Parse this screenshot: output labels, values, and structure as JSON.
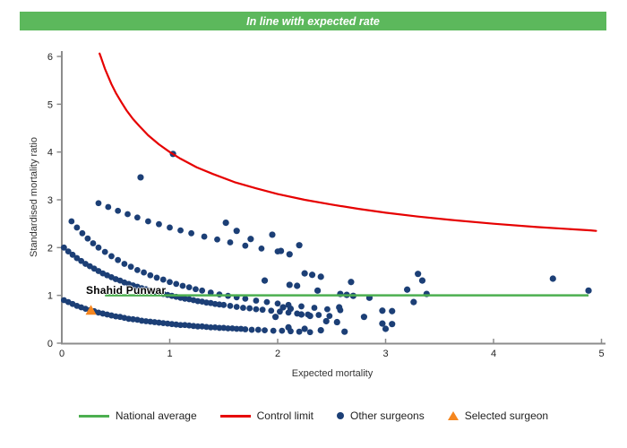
{
  "banner": {
    "title": "In line with expected rate",
    "bg_color": "#5cb85c",
    "text_color": "#ffffff"
  },
  "chart_data": {
    "type": "scatter",
    "xlabel": "Expected mortality",
    "ylabel": "Standardised mortality ratio",
    "xlim": [
      0,
      5
    ],
    "ylim": [
      0,
      6
    ],
    "x_ticks": [
      0,
      1,
      2,
      3,
      4,
      5
    ],
    "y_ticks": [
      0,
      1,
      2,
      3,
      4,
      5,
      6
    ],
    "grid": false,
    "axis_color": "#8c8c8c",
    "national_average": {
      "label": "National average",
      "value": 1,
      "x_start": 0.4,
      "x_end": 4.88,
      "color": "#4caf50"
    },
    "control_limit": {
      "label": "Control limit",
      "color": "#e60000",
      "formula": "y = 1 + 3/sqrt(x)",
      "points": [
        [
          0.35,
          6.06
        ],
        [
          0.36,
          6.0
        ],
        [
          0.38,
          5.87
        ],
        [
          0.4,
          5.74
        ],
        [
          0.43,
          5.58
        ],
        [
          0.46,
          5.42
        ],
        [
          0.5,
          5.24
        ],
        [
          0.55,
          5.05
        ],
        [
          0.6,
          4.87
        ],
        [
          0.66,
          4.69
        ],
        [
          0.72,
          4.54
        ],
        [
          0.8,
          4.35
        ],
        [
          0.9,
          4.16
        ],
        [
          1.0,
          4.0
        ],
        [
          1.1,
          3.86
        ],
        [
          1.25,
          3.68
        ],
        [
          1.4,
          3.54
        ],
        [
          1.6,
          3.37
        ],
        [
          1.8,
          3.24
        ],
        [
          2.0,
          3.12
        ],
        [
          2.25,
          3.0
        ],
        [
          2.5,
          2.9
        ],
        [
          2.75,
          2.81
        ],
        [
          3.0,
          2.73
        ],
        [
          3.3,
          2.65
        ],
        [
          3.6,
          2.58
        ],
        [
          4.0,
          2.5
        ],
        [
          4.4,
          2.43
        ],
        [
          4.9,
          2.36
        ],
        [
          4.95,
          2.35
        ]
      ]
    },
    "selected_surgeon": {
      "label": "Selected surgeon",
      "name": "Shahid Punwar",
      "x": 0.27,
      "y": 0.69,
      "color": "#f5861f"
    },
    "other_surgeons": {
      "label": "Other surgeons",
      "color": "#1c3f76",
      "bands": [
        [
          [
            0.02,
            0.9
          ],
          [
            0.06,
            0.86
          ],
          [
            0.1,
            0.82
          ],
          [
            0.14,
            0.78
          ],
          [
            0.18,
            0.75
          ],
          [
            0.22,
            0.72
          ],
          [
            0.26,
            0.69
          ],
          [
            0.3,
            0.67
          ],
          [
            0.34,
            0.64
          ],
          [
            0.38,
            0.62
          ],
          [
            0.42,
            0.6
          ],
          [
            0.46,
            0.58
          ],
          [
            0.5,
            0.56
          ],
          [
            0.54,
            0.55
          ],
          [
            0.58,
            0.53
          ],
          [
            0.62,
            0.51
          ],
          [
            0.66,
            0.5
          ],
          [
            0.7,
            0.49
          ],
          [
            0.74,
            0.47
          ],
          [
            0.78,
            0.46
          ],
          [
            0.82,
            0.45
          ],
          [
            0.86,
            0.44
          ],
          [
            0.9,
            0.43
          ],
          [
            0.94,
            0.42
          ],
          [
            0.98,
            0.41
          ],
          [
            1.02,
            0.4
          ],
          [
            1.06,
            0.39
          ],
          [
            1.1,
            0.38
          ],
          [
            1.14,
            0.38
          ],
          [
            1.18,
            0.37
          ],
          [
            1.22,
            0.36
          ],
          [
            1.26,
            0.35
          ],
          [
            1.3,
            0.35
          ],
          [
            1.34,
            0.34
          ],
          [
            1.38,
            0.33
          ],
          [
            1.42,
            0.33
          ],
          [
            1.46,
            0.32
          ],
          [
            1.5,
            0.32
          ],
          [
            1.54,
            0.31
          ],
          [
            1.58,
            0.31
          ],
          [
            1.62,
            0.3
          ],
          [
            1.66,
            0.3
          ],
          [
            1.7,
            0.29
          ],
          [
            1.76,
            0.28
          ],
          [
            1.82,
            0.28
          ],
          [
            1.88,
            0.27
          ],
          [
            1.96,
            0.26
          ],
          [
            2.04,
            0.26
          ],
          [
            2.12,
            0.25
          ],
          [
            2.2,
            0.24
          ],
          [
            2.3,
            0.23
          ]
        ],
        [
          [
            0.02,
            2.0
          ],
          [
            0.06,
            1.92
          ],
          [
            0.1,
            1.85
          ],
          [
            0.14,
            1.78
          ],
          [
            0.18,
            1.72
          ],
          [
            0.22,
            1.66
          ],
          [
            0.26,
            1.61
          ],
          [
            0.3,
            1.56
          ],
          [
            0.34,
            1.51
          ],
          [
            0.38,
            1.46
          ],
          [
            0.42,
            1.42
          ],
          [
            0.46,
            1.38
          ],
          [
            0.5,
            1.34
          ],
          [
            0.54,
            1.31
          ],
          [
            0.58,
            1.27
          ],
          [
            0.62,
            1.24
          ],
          [
            0.66,
            1.21
          ],
          [
            0.7,
            1.18
          ],
          [
            0.74,
            1.15
          ],
          [
            0.78,
            1.13
          ],
          [
            0.82,
            1.1
          ],
          [
            0.86,
            1.08
          ],
          [
            0.9,
            1.05
          ],
          [
            0.94,
            1.03
          ],
          [
            0.98,
            1.01
          ],
          [
            1.02,
            0.99
          ],
          [
            1.06,
            0.97
          ],
          [
            1.1,
            0.95
          ],
          [
            1.14,
            0.93
          ],
          [
            1.18,
            0.92
          ],
          [
            1.22,
            0.9
          ],
          [
            1.26,
            0.88
          ],
          [
            1.3,
            0.87
          ],
          [
            1.34,
            0.85
          ],
          [
            1.38,
            0.84
          ],
          [
            1.42,
            0.82
          ],
          [
            1.46,
            0.81
          ],
          [
            1.5,
            0.8
          ],
          [
            1.56,
            0.78
          ],
          [
            1.62,
            0.76
          ],
          [
            1.68,
            0.74
          ],
          [
            1.74,
            0.73
          ],
          [
            1.8,
            0.71
          ],
          [
            1.86,
            0.7
          ],
          [
            1.94,
            0.68
          ],
          [
            2.02,
            0.66
          ],
          [
            2.1,
            0.64
          ],
          [
            2.18,
            0.62
          ],
          [
            2.28,
            0.6
          ],
          [
            2.38,
            0.59
          ],
          [
            2.48,
            0.57
          ]
        ],
        [
          [
            0.09,
            2.55
          ],
          [
            0.14,
            2.42
          ],
          [
            0.19,
            2.3
          ],
          [
            0.24,
            2.19
          ],
          [
            0.29,
            2.09
          ],
          [
            0.34,
            2.0
          ],
          [
            0.4,
            1.91
          ],
          [
            0.46,
            1.82
          ],
          [
            0.52,
            1.74
          ],
          [
            0.58,
            1.66
          ],
          [
            0.64,
            1.6
          ],
          [
            0.7,
            1.53
          ],
          [
            0.76,
            1.48
          ],
          [
            0.82,
            1.42
          ],
          [
            0.88,
            1.37
          ],
          [
            0.94,
            1.33
          ],
          [
            1.0,
            1.28
          ],
          [
            1.06,
            1.24
          ],
          [
            1.12,
            1.2
          ],
          [
            1.18,
            1.17
          ],
          [
            1.24,
            1.13
          ],
          [
            1.3,
            1.1
          ],
          [
            1.38,
            1.06
          ],
          [
            1.46,
            1.02
          ],
          [
            1.54,
            0.99
          ],
          [
            1.62,
            0.96
          ],
          [
            1.7,
            0.93
          ],
          [
            1.8,
            0.89
          ],
          [
            1.9,
            0.86
          ],
          [
            2.0,
            0.83
          ],
          [
            2.1,
            0.8
          ],
          [
            2.22,
            0.77
          ],
          [
            2.34,
            0.74
          ],
          [
            2.46,
            0.71
          ],
          [
            2.58,
            0.69
          ]
        ],
        [
          [
            0.34,
            2.93
          ],
          [
            0.43,
            2.85
          ],
          [
            0.52,
            2.77
          ],
          [
            0.61,
            2.7
          ],
          [
            0.7,
            2.63
          ],
          [
            0.8,
            2.55
          ],
          [
            0.9,
            2.49
          ],
          [
            1.0,
            2.42
          ],
          [
            1.1,
            2.36
          ],
          [
            1.2,
            2.3
          ],
          [
            1.32,
            2.23
          ],
          [
            1.44,
            2.17
          ],
          [
            1.56,
            2.11
          ],
          [
            1.7,
            2.04
          ],
          [
            1.85,
            1.98
          ],
          [
            2.0,
            1.92
          ]
        ]
      ],
      "scatter": [
        [
          1.03,
          3.96
        ],
        [
          0.73,
          3.47
        ],
        [
          1.52,
          2.52
        ],
        [
          1.62,
          2.35
        ],
        [
          1.75,
          2.18
        ],
        [
          1.95,
          2.27
        ],
        [
          2.2,
          2.05
        ],
        [
          2.03,
          1.93
        ],
        [
          2.11,
          1.86
        ],
        [
          1.88,
          1.31
        ],
        [
          2.25,
          1.46
        ],
        [
          2.32,
          1.43
        ],
        [
          2.4,
          1.39
        ],
        [
          2.68,
          1.28
        ],
        [
          2.11,
          1.22
        ],
        [
          2.18,
          1.2
        ],
        [
          2.37,
          1.1
        ],
        [
          2.58,
          1.03
        ],
        [
          2.64,
          1.01
        ],
        [
          2.7,
          0.99
        ],
        [
          2.85,
          0.95
        ],
        [
          3.2,
          1.12
        ],
        [
          3.26,
          0.86
        ],
        [
          3.34,
          1.31
        ],
        [
          3.38,
          1.03
        ],
        [
          3.3,
          1.45
        ],
        [
          4.55,
          1.35
        ],
        [
          4.88,
          1.1
        ],
        [
          2.57,
          0.75
        ],
        [
          2.97,
          0.68
        ],
        [
          3.06,
          0.67
        ],
        [
          2.97,
          0.41
        ],
        [
          3.06,
          0.4
        ],
        [
          2.05,
          0.75
        ],
        [
          2.12,
          0.72
        ],
        [
          1.98,
          0.55
        ],
        [
          2.22,
          0.6
        ],
        [
          2.3,
          0.57
        ],
        [
          2.45,
          0.46
        ],
        [
          2.55,
          0.44
        ],
        [
          2.1,
          0.33
        ],
        [
          2.25,
          0.3
        ],
        [
          2.4,
          0.27
        ],
        [
          2.62,
          0.24
        ],
        [
          3.0,
          0.3
        ],
        [
          2.8,
          0.55
        ]
      ]
    }
  },
  "legend": {
    "items": [
      {
        "type": "line",
        "color": "#4caf50",
        "label": "National average"
      },
      {
        "type": "line",
        "color": "#e60000",
        "label": "Control limit"
      },
      {
        "type": "dot",
        "color": "#1c3f76",
        "label": "Other surgeons"
      },
      {
        "type": "triangle",
        "color": "#f5861f",
        "label": "Selected surgeon"
      }
    ]
  }
}
